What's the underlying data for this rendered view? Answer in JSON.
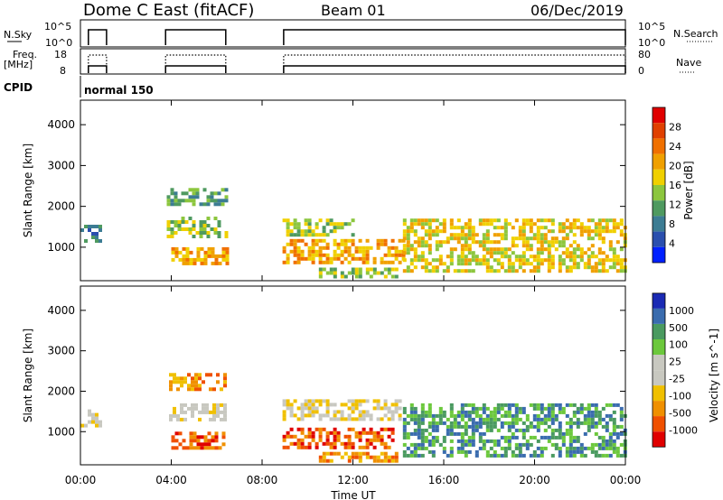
{
  "header": {
    "station": "Dome C East (fitACF)",
    "beam": "Beam 01",
    "date": "06/Dec/2019"
  },
  "strip_labels": {
    "nsky": "N.Sky",
    "nsky_top": "10^5",
    "nsky_bottom": "10^0",
    "nsearch": "N.Search",
    "nsearch_top": "10^5",
    "nsearch_bottom": "10^0",
    "freq_line1": "Freq.",
    "freq_line2": "[MHz]",
    "freq_top": "18",
    "freq_bottom": "8",
    "nave": "Nave",
    "nave_top": "80",
    "nave_bottom": "0",
    "cpid": "CPID",
    "cpid_value": "normal 150"
  },
  "colors": {
    "power_scale": [
      "#0020ff",
      "#2a4fae",
      "#3c7c93",
      "#4f9a60",
      "#8cc63e",
      "#f0d000",
      "#f0a000",
      "#f07000",
      "#e04000",
      "#e00000"
    ],
    "velocity_scale": [
      "#e00000",
      "#f05000",
      "#f09000",
      "#f0c000",
      "#c8c8c0",
      "#c8c8c0",
      "#6cc83c",
      "#4a9a60",
      "#3a6cae",
      "#1a2ab4"
    ]
  },
  "chart_data": [
    {
      "type": "heatmap",
      "name_label": "power-panel",
      "ylabel": "Slant Range [km]",
      "xlabel": "",
      "xlim": [
        0,
        24
      ],
      "ylim": [
        180,
        4600
      ],
      "x_ticks": [
        0,
        4,
        8,
        12,
        16,
        20,
        24
      ],
      "y_ticks": [
        1000,
        2000,
        3000,
        4000
      ],
      "colorbar_label": "Power [dB]",
      "colorbar_ticks": [
        "4",
        "8",
        "12",
        "16",
        "20",
        "24",
        "28"
      ],
      "echo_regions": [
        {
          "t0": 0.0,
          "t1": 0.9,
          "r0": 1150,
          "r1": 1550,
          "level": 2
        },
        {
          "t0": 3.8,
          "t1": 6.4,
          "r0": 2050,
          "r1": 2450,
          "level": 3
        },
        {
          "t0": 3.8,
          "t1": 6.4,
          "r0": 1250,
          "r1": 1750,
          "level": 4
        },
        {
          "t0": 4.0,
          "t1": 6.4,
          "r0": 600,
          "r1": 1000,
          "level": 6
        },
        {
          "t0": 8.9,
          "t1": 12.0,
          "r0": 1300,
          "r1": 1700,
          "level": 4
        },
        {
          "t0": 8.9,
          "t1": 14.2,
          "r0": 600,
          "r1": 1200,
          "level": 6
        },
        {
          "t0": 10.5,
          "t1": 14.0,
          "r0": 250,
          "r1": 500,
          "level": 4
        },
        {
          "t0": 14.2,
          "t1": 24.0,
          "r0": 400,
          "r1": 1700,
          "level": 5
        }
      ]
    },
    {
      "type": "heatmap",
      "name_label": "velocity-panel",
      "ylabel": "Slant Range [km]",
      "xlabel": "Time UT",
      "xlim": [
        0,
        24
      ],
      "ylim": [
        180,
        4600
      ],
      "x_ticks": [
        0,
        4,
        8,
        12,
        16,
        20,
        24
      ],
      "x_tick_labels": [
        "00:00",
        "04:00",
        "08:00",
        "12:00",
        "16:00",
        "20:00",
        "00:00"
      ],
      "y_ticks": [
        1000,
        2000,
        3000,
        4000
      ],
      "colorbar_label": "Velocity [m s^-1]",
      "colorbar_ticks": [
        "-1000",
        "-500",
        "-100",
        "-25",
        "25",
        "100",
        "500",
        "1000"
      ],
      "echo_regions": [
        {
          "t0": 0.0,
          "t1": 0.9,
          "r0": 1150,
          "r1": 1550,
          "level": 4
        },
        {
          "t0": 3.9,
          "t1": 6.3,
          "r0": 2050,
          "r1": 2450,
          "level": 2
        },
        {
          "t0": 3.9,
          "t1": 6.3,
          "r0": 1300,
          "r1": 1700,
          "level": 4
        },
        {
          "t0": 4.0,
          "t1": 6.3,
          "r0": 600,
          "r1": 1000,
          "level": 1
        },
        {
          "t0": 8.9,
          "t1": 14.0,
          "r0": 1300,
          "r1": 1800,
          "level": 4
        },
        {
          "t0": 8.9,
          "t1": 13.8,
          "r0": 600,
          "r1": 1100,
          "level": 1
        },
        {
          "t0": 10.5,
          "t1": 14.0,
          "r0": 250,
          "r1": 500,
          "level": 2
        },
        {
          "t0": 14.2,
          "t1": 24.0,
          "r0": 400,
          "r1": 1700,
          "level": 7
        }
      ]
    }
  ]
}
